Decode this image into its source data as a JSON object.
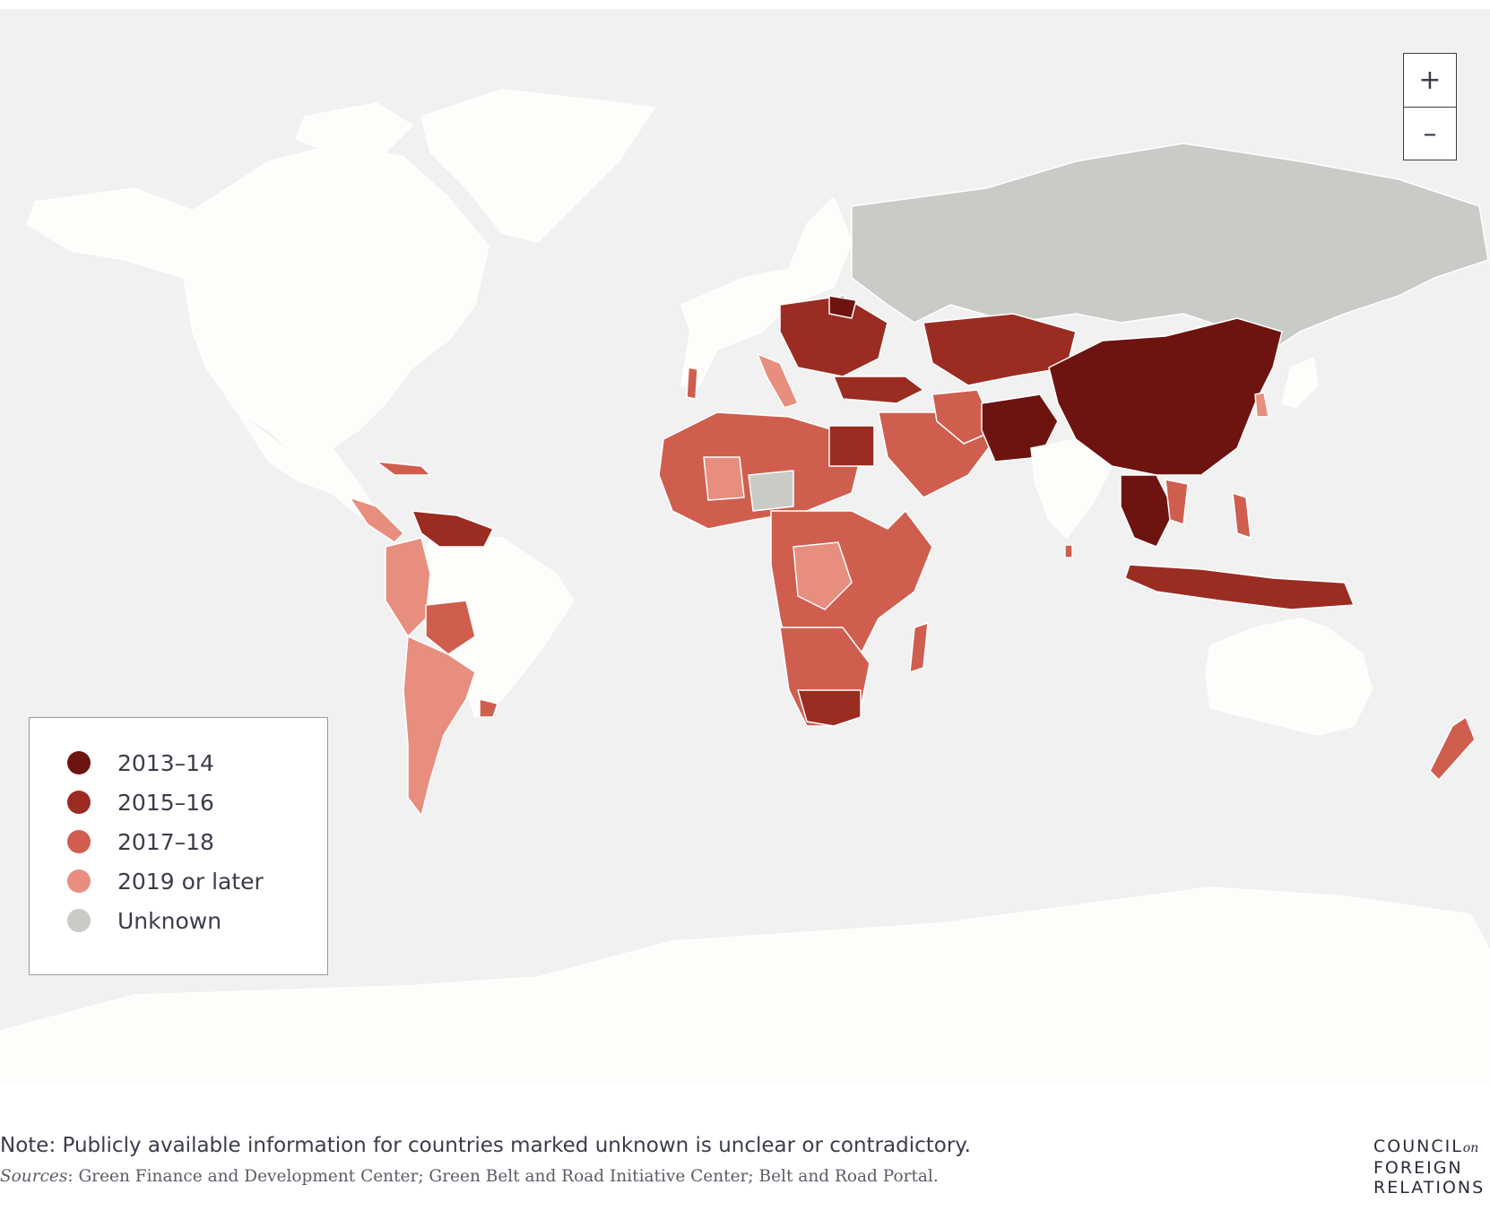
{
  "map": {
    "ocean_color": "#f1f1f2",
    "land_color_no_data": "#fefdf9",
    "border_color": "#ffffff"
  },
  "zoom": {
    "in_label": "+",
    "out_label": "–"
  },
  "legend": {
    "items": [
      {
        "label": "2013–14",
        "color": "#6e1410"
      },
      {
        "label": "2015–16",
        "color": "#9b2c22"
      },
      {
        "label": "2017–18",
        "color": "#cf5e4e"
      },
      {
        "label": "2019 or later",
        "color": "#e78e7e"
      },
      {
        "label": "Unknown",
        "color": "#c8cbc6"
      }
    ]
  },
  "footer": {
    "note": "Note: Publicly available information for countries marked unknown is unclear or contradictory.",
    "sources_prefix": "Sources",
    "sources_text": ": Green Finance and Development Center; Green Belt and Road Initiative Center; Belt and Road Portal."
  },
  "logo": {
    "line1": "COUNCIL",
    "line1_suffix": "on",
    "line2": "FOREIGN",
    "line3": "RELATIONS"
  }
}
